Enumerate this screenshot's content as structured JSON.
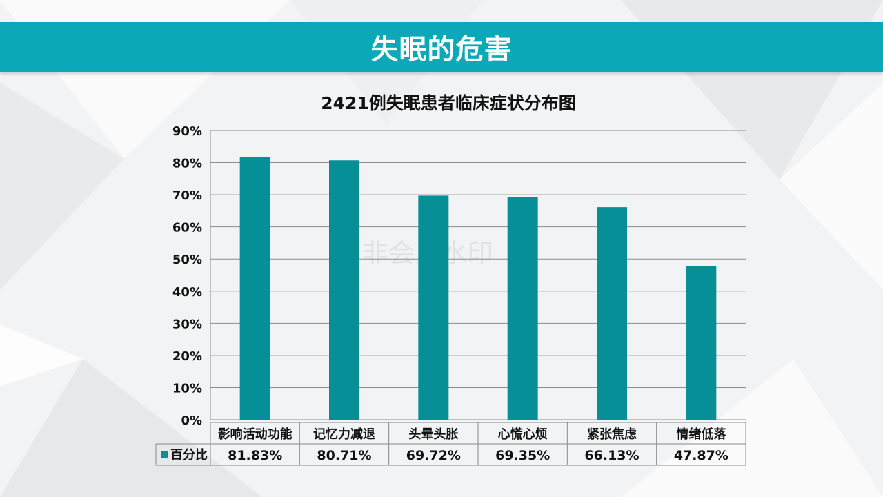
{
  "slide": {
    "title": "失眠的危害"
  },
  "watermark": "非会员水印",
  "colors": {
    "banner": "#0aa8b8",
    "bar": "#078f97",
    "grid": "#8c8c8c"
  },
  "chart_data": {
    "type": "bar",
    "title": "2421例失眠患者临床症状分布图",
    "categories": [
      "影响活动功能",
      "记忆力减退",
      "头晕头胀",
      "心慌心烦",
      "紧张焦虑",
      "情绪低落"
    ],
    "series": [
      {
        "name": "百分比",
        "values": [
          81.83,
          80.71,
          69.72,
          69.35,
          66.13,
          47.87
        ],
        "labels": [
          "81.83%",
          "80.71%",
          "69.72%",
          "69.35%",
          "66.13%",
          "47.87%"
        ]
      }
    ],
    "yticks": [
      "0%",
      "10%",
      "20%",
      "30%",
      "40%",
      "50%",
      "60%",
      "70%",
      "80%",
      "90%"
    ],
    "ylim": [
      0,
      90
    ],
    "grid": true,
    "data_table": true
  }
}
